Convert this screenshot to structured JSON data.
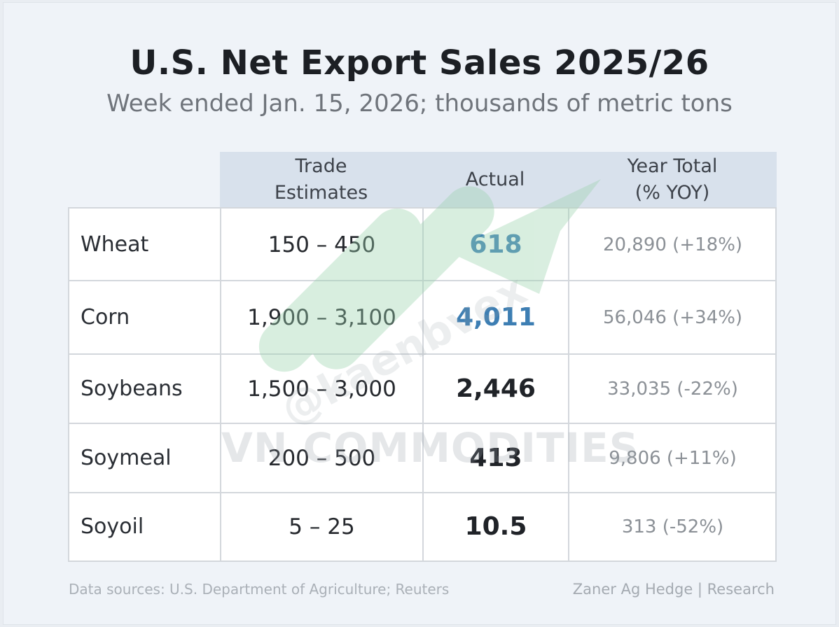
{
  "title": "U.S. Net Export Sales 2025/26",
  "subtitle": "Week ended Jan. 15, 2026; thousands of metric tons",
  "columns": {
    "trade_estimates": [
      "Trade",
      "Estimates"
    ],
    "actual": "Actual",
    "year_total": [
      "Year Total",
      "(% YOY)"
    ]
  },
  "chart_data": {
    "type": "table",
    "title": "U.S. Net Export Sales 2025/26",
    "subtitle": "Week ended Jan. 15, 2026; thousands of metric tons",
    "headers": [
      "",
      "Trade Estimates",
      "Actual",
      "Year Total (% YOY)"
    ],
    "rows": [
      {
        "commodity": "Wheat",
        "trade_estimates": "150 – 450",
        "actual": "618",
        "year_total": "20,890 (+18%)",
        "highlight": true
      },
      {
        "commodity": "Corn",
        "trade_estimates": "1,900 – 3,100",
        "actual": "4,011",
        "year_total": "56,046 (+34%)",
        "highlight": true
      },
      {
        "commodity": "Soybeans",
        "trade_estimates": "1,500 – 3,000",
        "actual": "2,446",
        "year_total": "33,035 (-22%)",
        "highlight": false
      },
      {
        "commodity": "Soymeal",
        "trade_estimates": "200 – 500",
        "actual": "413",
        "year_total": "9,806 (+11%)",
        "highlight": false
      },
      {
        "commodity": "Soyoil",
        "trade_estimates": "5 – 25",
        "actual": "10.5",
        "year_total": "313 (-52%)",
        "highlight": false
      }
    ]
  },
  "colors": {
    "highlight_actual": "#3d7eb3",
    "header_band": "#d8e1ec",
    "watermark_arrow": "#9bd3ae"
  },
  "footer": {
    "source": "Data sources: U.S. Department of Agriculture; Reuters",
    "credit": "Zaner Ag Hedge | Research"
  },
  "watermark": {
    "text": "VN COMMODITIES",
    "handle": "@kaenbvex",
    "logo_icon": "up-trend-arrow-icon"
  }
}
